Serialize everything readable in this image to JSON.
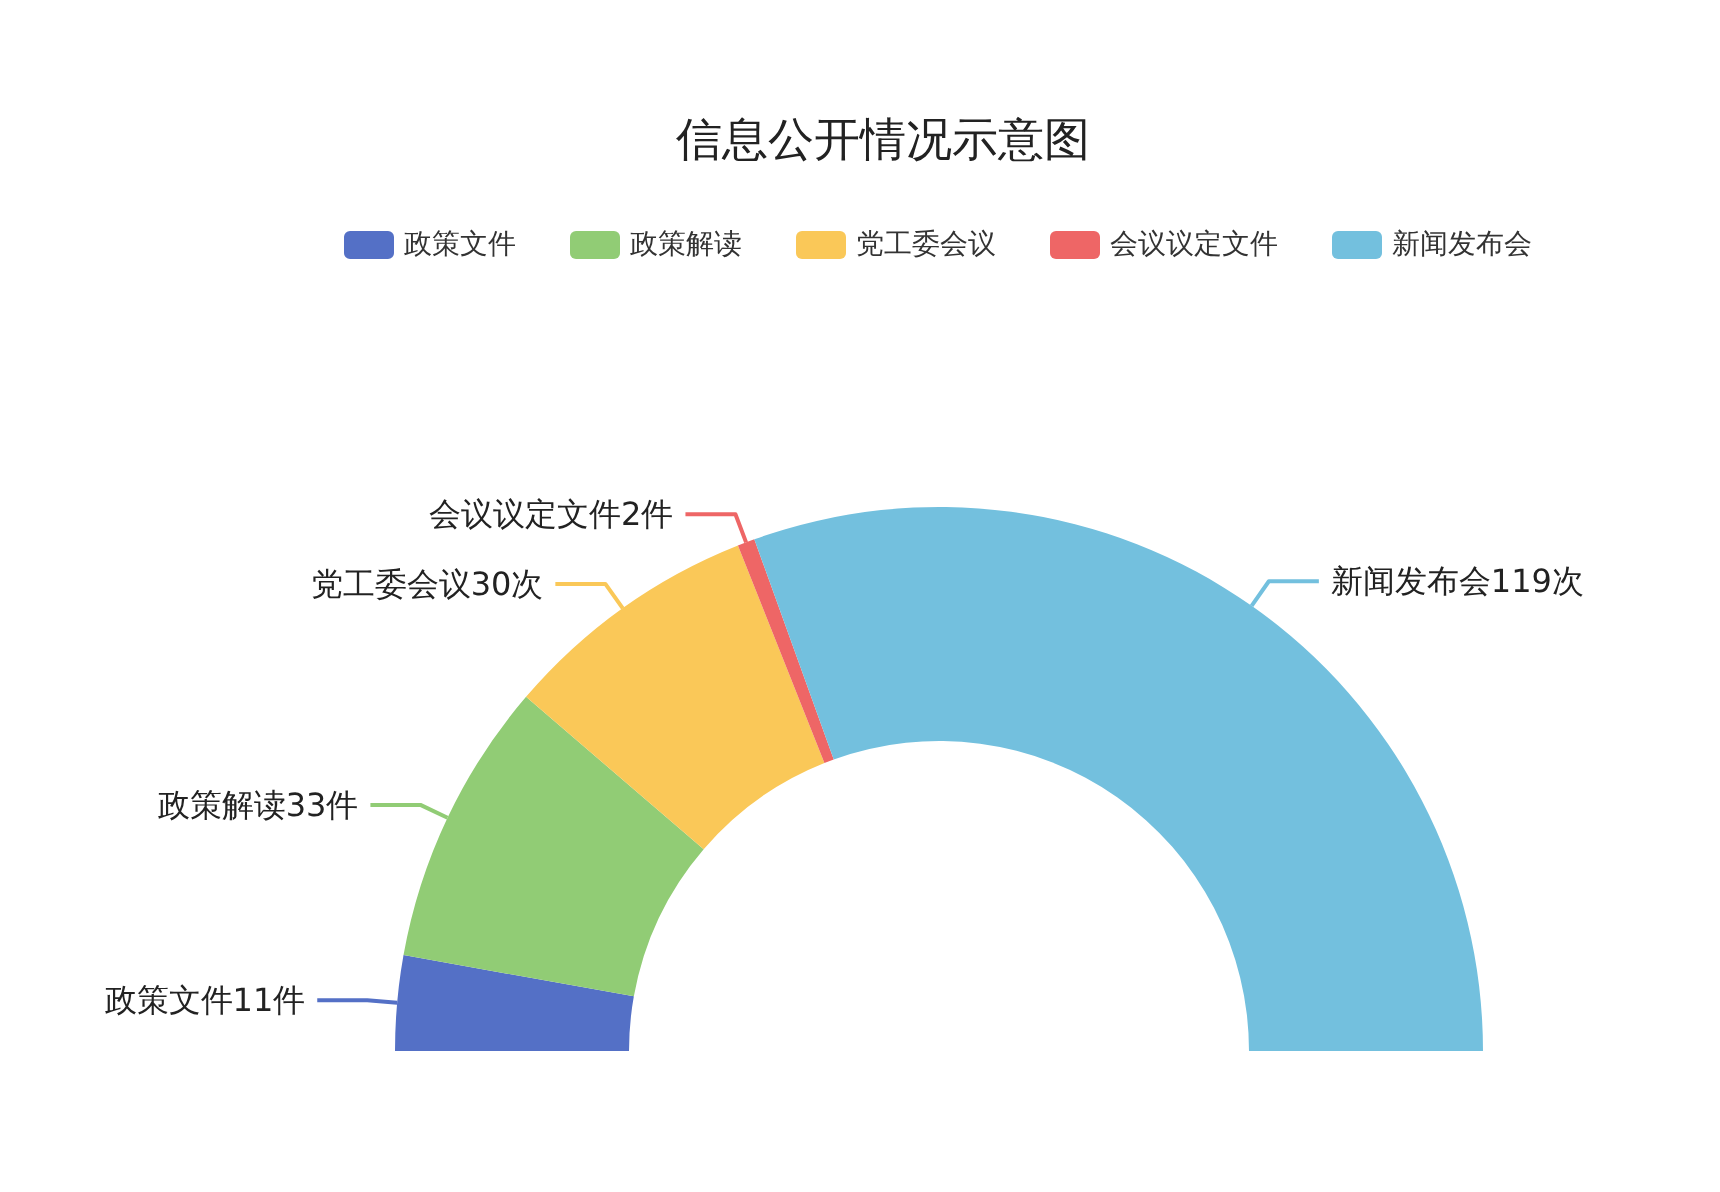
{
  "chart_data": {
    "type": "donut",
    "title": "信息公开情况示意图",
    "categories": [
      "政策文件",
      "政策解读",
      "党工委会议",
      "会议议定文件",
      "新闻发布会"
    ],
    "values": [
      11,
      33,
      30,
      2,
      119
    ],
    "colors": [
      "#5470c6",
      "#91cc75",
      "#fac858",
      "#ee6666",
      "#73c0de"
    ],
    "value_labels": [
      "政策文件11件",
      "政策解读33件",
      "党工委会议30次",
      "会议议定文件2件",
      "新闻发布会119次"
    ],
    "legend": "top"
  }
}
